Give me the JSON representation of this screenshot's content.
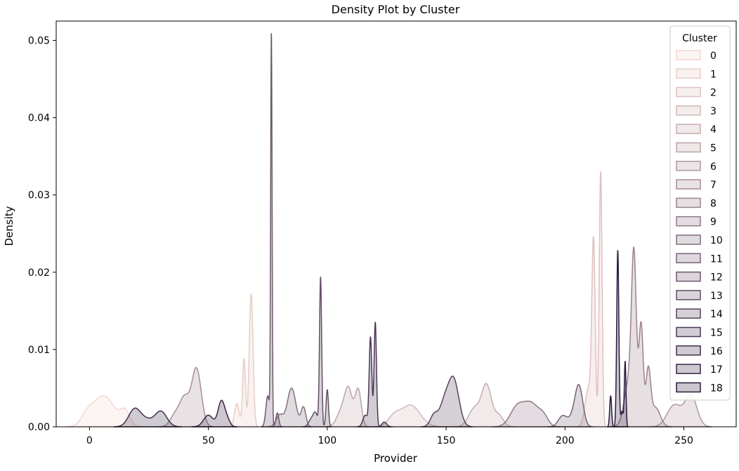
{
  "chart_data": {
    "type": "area",
    "title": "Density Plot by Cluster",
    "xlabel": "Provider",
    "ylabel": "Density",
    "xlim": [
      -14,
      272
    ],
    "ylim": [
      0,
      0.0525
    ],
    "x_ticks": [
      0,
      50,
      100,
      150,
      200,
      250
    ],
    "y_ticks": [
      0.0,
      0.01,
      0.02,
      0.03,
      0.04,
      0.05
    ],
    "y_tick_labels": [
      "0.00",
      "0.01",
      "0.02",
      "0.03",
      "0.04",
      "0.05"
    ],
    "grid": false,
    "legend": {
      "title": "Cluster",
      "placement": "upper-right"
    },
    "palette": {
      "light": "#f4d6cf",
      "dark": "#2b1a3d"
    },
    "series": [
      {
        "name": "0",
        "peaks": [
          [
            6,
            0.004,
            4.5
          ],
          [
            15,
            0.0018,
            2.0
          ],
          [
            -1,
            0.0012,
            2.5
          ]
        ]
      },
      {
        "name": "1",
        "peaks": [
          [
            68,
            0.0172,
            0.8
          ],
          [
            65,
            0.0088,
            0.6
          ],
          [
            62,
            0.003,
            1.0
          ]
        ]
      },
      {
        "name": "2",
        "peaks": [
          [
            215,
            0.033,
            0.6
          ],
          [
            212,
            0.0225,
            0.7
          ],
          [
            210,
            0.005,
            1.5
          ]
        ]
      },
      {
        "name": "3",
        "peaks": [
          [
            135,
            0.0028,
            4.0
          ],
          [
            128,
            0.0012,
            2.5
          ]
        ]
      },
      {
        "name": "4",
        "peaks": [
          [
            167,
            0.0052,
            2.0
          ],
          [
            162,
            0.0024,
            2.5
          ],
          [
            172,
            0.0015,
            2.0
          ]
        ]
      },
      {
        "name": "5",
        "peaks": [
          [
            109,
            0.0045,
            1.6
          ],
          [
            113,
            0.0048,
            1.3
          ],
          [
            106,
            0.002,
            2.0
          ]
        ]
      },
      {
        "name": "6",
        "peaks": [
          [
            246,
            0.0028,
            3.0
          ],
          [
            253,
            0.004,
            2.5
          ]
        ]
      },
      {
        "name": "7",
        "peaks": [
          [
            45,
            0.0075,
            2.0
          ],
          [
            40,
            0.0036,
            2.0
          ],
          [
            36,
            0.0015,
            2.0
          ]
        ]
      },
      {
        "name": "8",
        "peaks": [
          [
            229,
            0.0195,
            1.0
          ],
          [
            232,
            0.013,
            0.9
          ],
          [
            235,
            0.007,
            1.0
          ],
          [
            227,
            0.006,
            2.0
          ],
          [
            238,
            0.0025,
            2.0
          ]
        ]
      },
      {
        "name": "9",
        "peaks": [
          [
            180,
            0.0026,
            3.0
          ],
          [
            186,
            0.0028,
            3.0
          ],
          [
            191,
            0.0012,
            2.0
          ]
        ]
      },
      {
        "name": "10",
        "peaks": [
          [
            85,
            0.005,
            1.8
          ],
          [
            90,
            0.0025,
            1.0
          ],
          [
            80,
            0.0015,
            1.5
          ]
        ]
      },
      {
        "name": "11",
        "peaks": [
          [
            206,
            0.0045,
            1.6
          ],
          [
            199,
            0.0014,
            1.8
          ],
          [
            204,
            0.0015,
            2.0
          ]
        ]
      },
      {
        "name": "12",
        "peaks": [
          [
            76.5,
            0.0502,
            0.3
          ],
          [
            75,
            0.004,
            0.8
          ],
          [
            79,
            0.0018,
            0.6
          ]
        ]
      },
      {
        "name": "13",
        "peaks": [
          [
            97.2,
            0.0192,
            0.45
          ],
          [
            100,
            0.0048,
            0.5
          ],
          [
            95,
            0.0018,
            1.0
          ],
          [
            93,
            0.0008,
            1.0
          ]
        ]
      },
      {
        "name": "14",
        "peaks": [
          [
            153,
            0.0063,
            2.3
          ],
          [
            145,
            0.0016,
            1.6
          ],
          [
            149,
            0.0025,
            1.8
          ]
        ]
      },
      {
        "name": "15",
        "peaks": [
          [
            118.2,
            0.0115,
            0.55
          ],
          [
            120.2,
            0.0135,
            0.5
          ],
          [
            116,
            0.0015,
            1.0
          ],
          [
            124,
            0.0006,
            1.0
          ]
        ]
      },
      {
        "name": "16",
        "peaks": [
          [
            19,
            0.0023,
            2.5
          ],
          [
            30,
            0.002,
            2.5
          ],
          [
            24,
            0.0008,
            2.5
          ]
        ]
      },
      {
        "name": "17",
        "peaks": [
          [
            55.5,
            0.0033,
            1.4
          ],
          [
            50,
            0.0015,
            2.0
          ],
          [
            58,
            0.0008,
            1.2
          ]
        ]
      },
      {
        "name": "18",
        "peaks": [
          [
            222.2,
            0.0228,
            0.45
          ],
          [
            225.3,
            0.0084,
            0.35
          ],
          [
            219.2,
            0.004,
            0.4
          ],
          [
            224,
            0.002,
            0.5
          ]
        ]
      }
    ]
  }
}
